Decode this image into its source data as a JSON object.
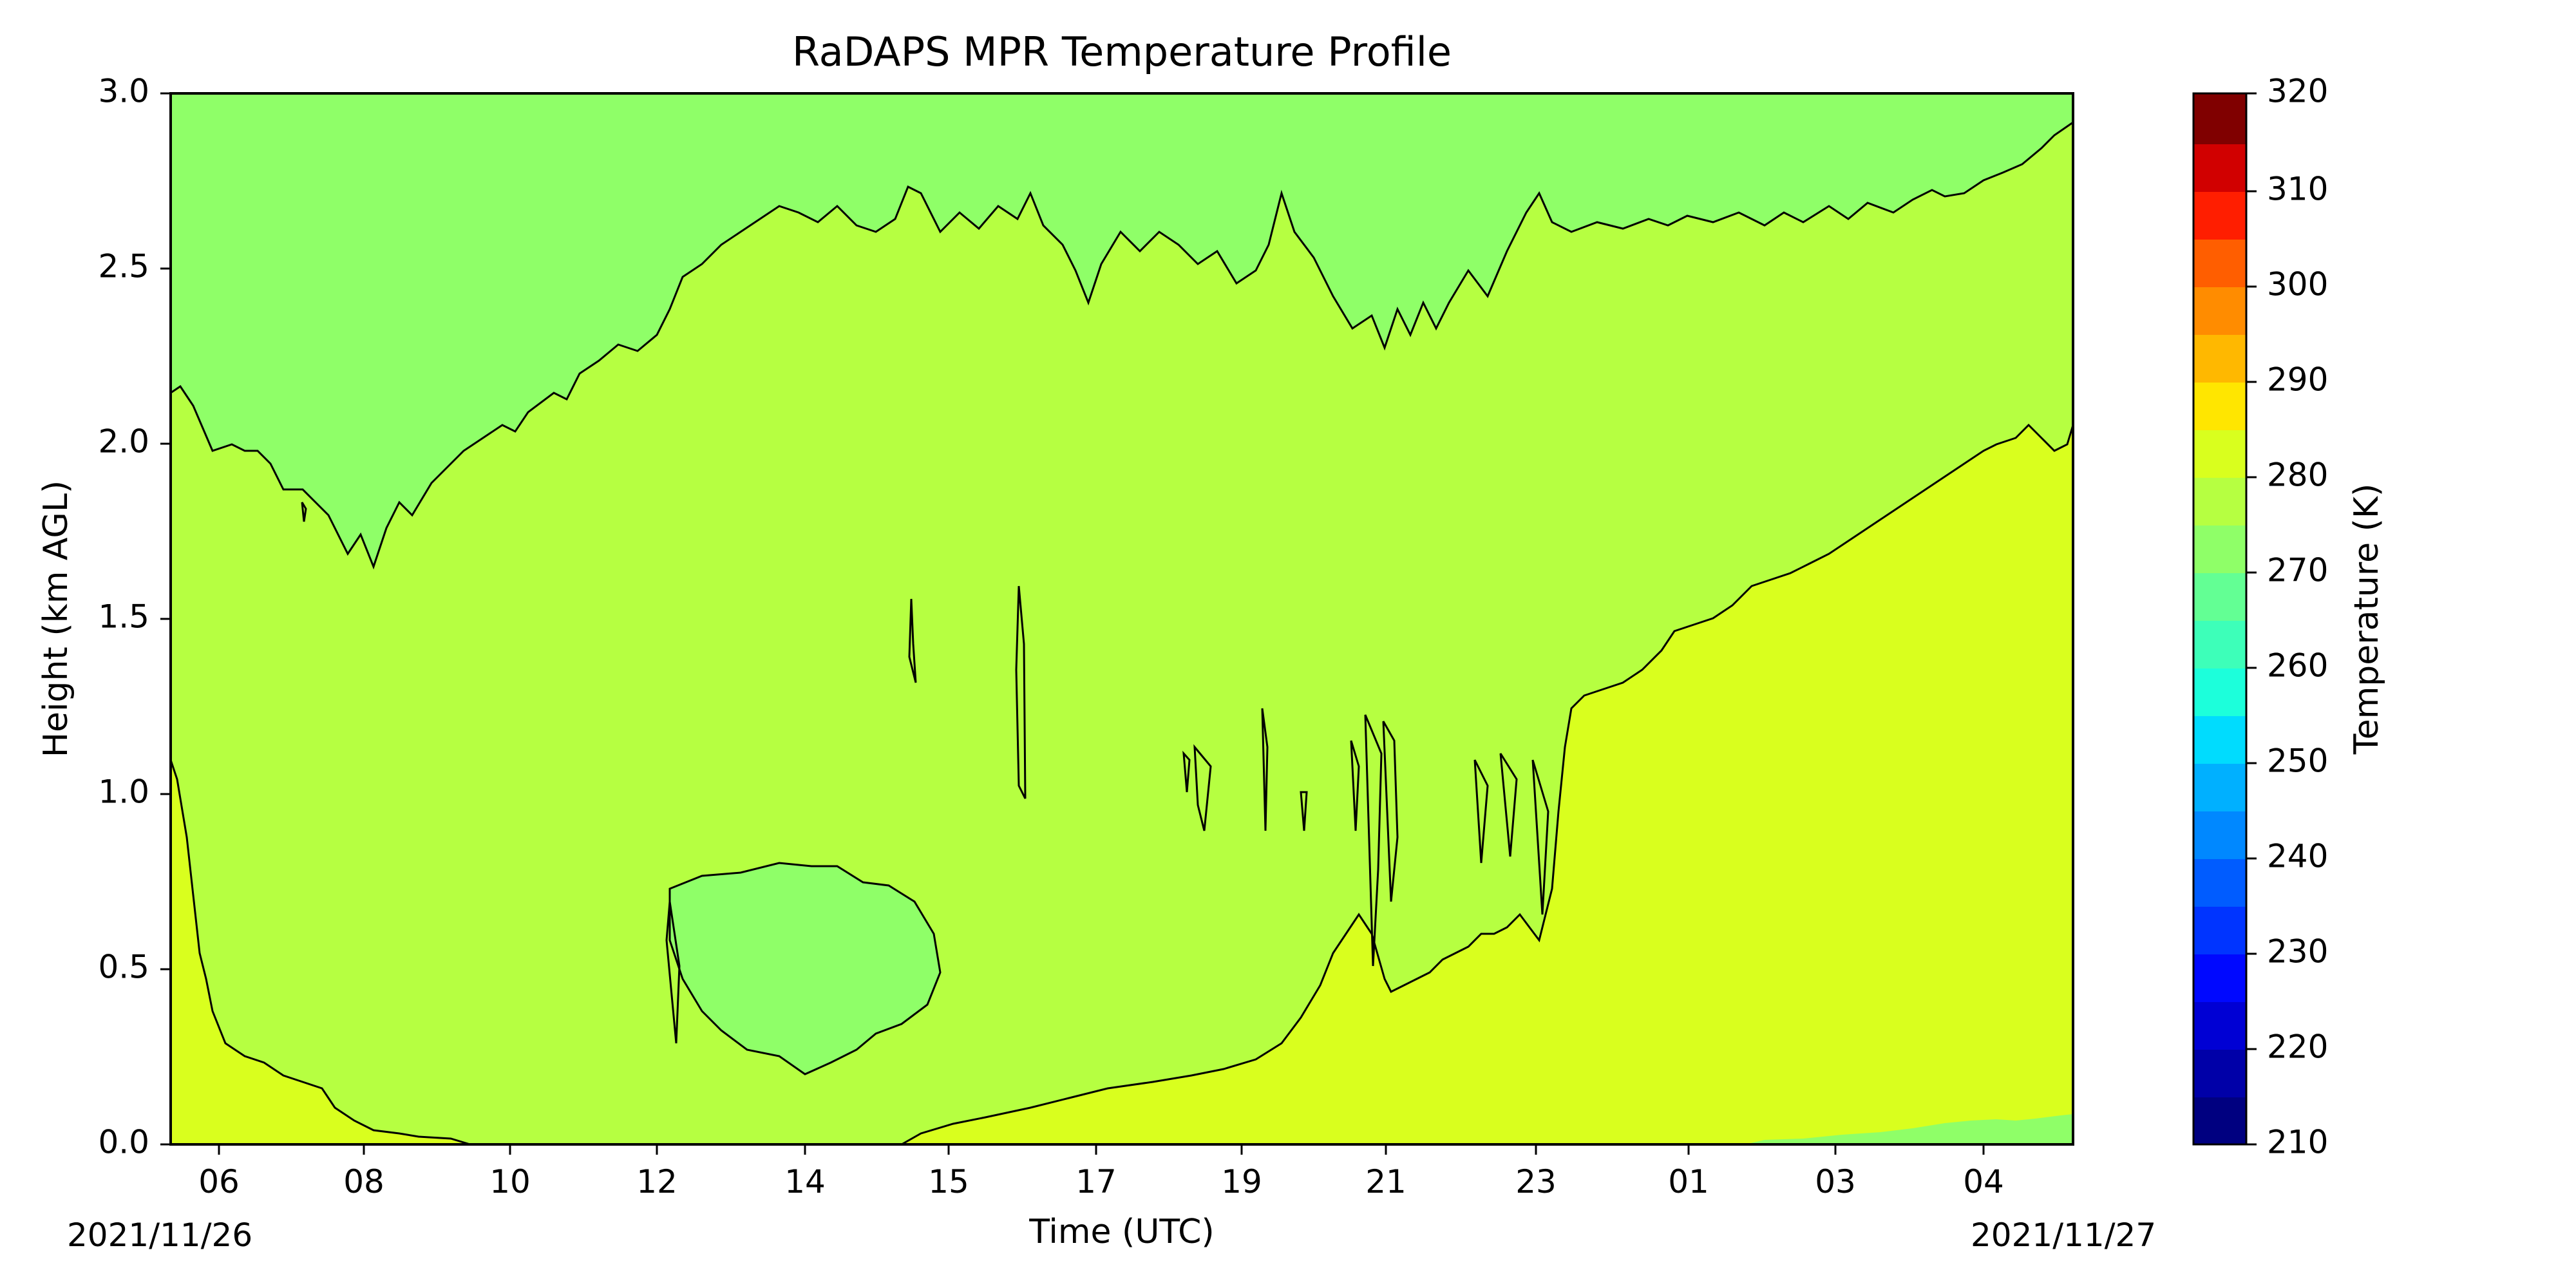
{
  "chart_data": {
    "type": "heatmap",
    "title": "RaDAPS MPR Temperature Profile",
    "xlabel": "Time (UTC)",
    "ylabel": "Height (km AGL)",
    "x_tick_labels": [
      "06",
      "08",
      "10",
      "12",
      "14",
      "15",
      "17",
      "19",
      "21",
      "23",
      "01",
      "03",
      "04"
    ],
    "date_labels": {
      "start": "2021/11/26",
      "end": "2021/11/27"
    },
    "ylim": [
      0.0,
      3.0
    ],
    "y_ticks": [
      "0.0",
      "0.5",
      "1.0",
      "1.5",
      "2.0",
      "2.5",
      "3.0"
    ],
    "colorbar": {
      "label": "Temperature (K)",
      "range": [
        210,
        320
      ],
      "ticks": [
        "210",
        "220",
        "230",
        "240",
        "250",
        "260",
        "270",
        "280",
        "290",
        "300",
        "310",
        "320"
      ],
      "levels": [
        {
          "from": 210,
          "to": 215,
          "color": "#000080"
        },
        {
          "from": 215,
          "to": 220,
          "color": "#0000a8"
        },
        {
          "from": 220,
          "to": 225,
          "color": "#0000d4"
        },
        {
          "from": 225,
          "to": 230,
          "color": "#0008ff"
        },
        {
          "from": 230,
          "to": 235,
          "color": "#0034ff"
        },
        {
          "from": 235,
          "to": 240,
          "color": "#005cff"
        },
        {
          "from": 240,
          "to": 245,
          "color": "#0088ff"
        },
        {
          "from": 245,
          "to": 250,
          "color": "#00b0ff"
        },
        {
          "from": 250,
          "to": 255,
          "color": "#00dcfe"
        },
        {
          "from": 255,
          "to": 260,
          "color": "#1cffdb"
        },
        {
          "from": 260,
          "to": 265,
          "color": "#3dffb9"
        },
        {
          "from": 265,
          "to": 270,
          "color": "#63ff94"
        },
        {
          "from": 270,
          "to": 275,
          "color": "#8fff68"
        },
        {
          "from": 275,
          "to": 280,
          "color": "#b6ff41"
        },
        {
          "from": 280,
          "to": 285,
          "color": "#d9ff1e"
        },
        {
          "from": 285,
          "to": 290,
          "color": "#ffe600"
        },
        {
          "from": 290,
          "to": 295,
          "color": "#ffb800"
        },
        {
          "from": 295,
          "to": 300,
          "color": "#ff8c00"
        },
        {
          "from": 300,
          "to": 305,
          "color": "#ff5e00"
        },
        {
          "from": 305,
          "to": 310,
          "color": "#ff1e00"
        },
        {
          "from": 310,
          "to": 315,
          "color": "#d10000"
        },
        {
          "from": 315,
          "to": 320,
          "color": "#800000"
        }
      ]
    },
    "field_regions": [
      {
        "range": "270-275 K",
        "color": "#8fff68",
        "location": "upper layer above ~2.2-2.8 km"
      },
      {
        "range": "275-280 K",
        "color": "#b6ff41",
        "location": "bulk of the profile"
      },
      {
        "range": "280-285 K",
        "color": "#d9ff1e",
        "location": "near-surface layer, deepening to ~2 km after 23 UTC"
      }
    ]
  }
}
